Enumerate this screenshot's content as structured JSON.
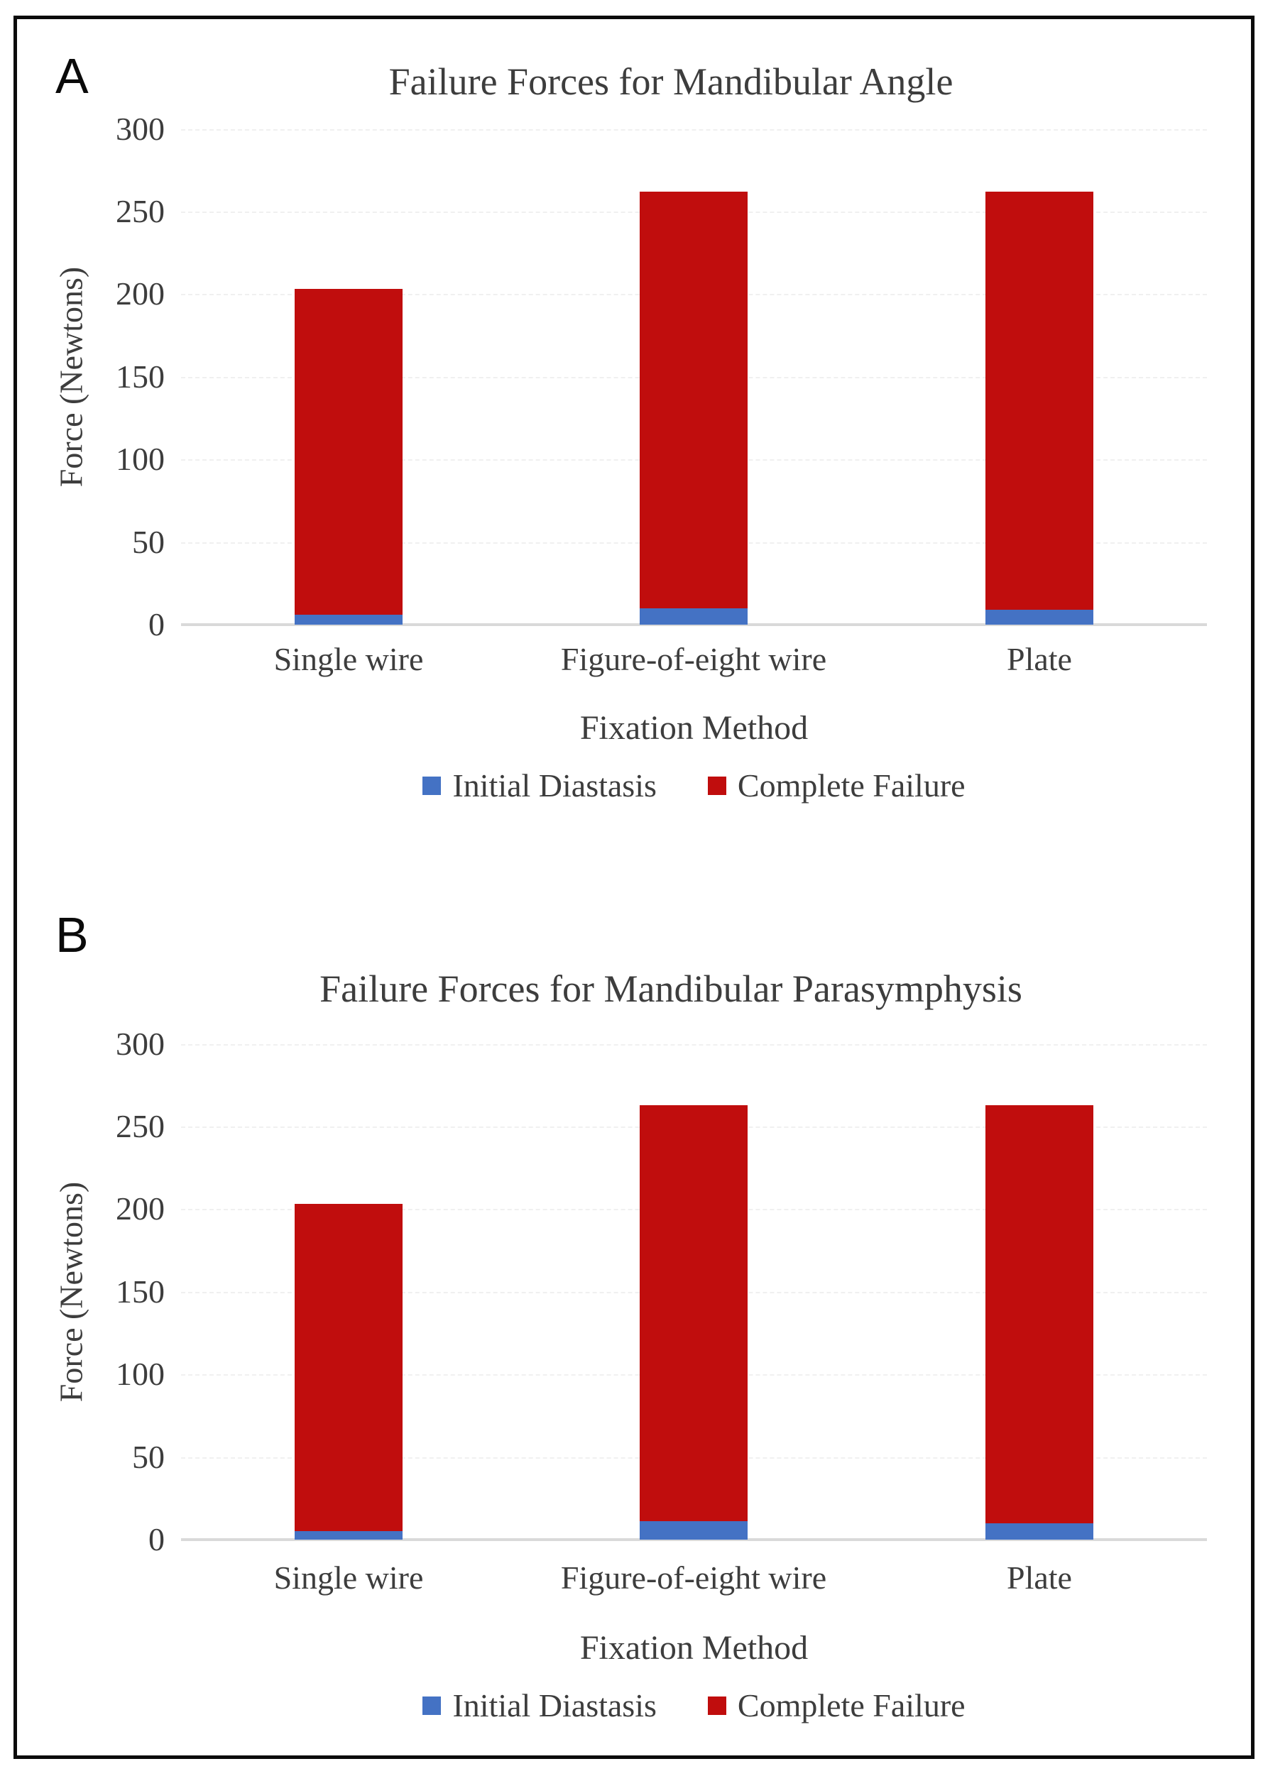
{
  "colors": {
    "initial_diastasis_blue": "#4472C4",
    "complete_failure_red": "#C00D0D",
    "baseline_gray": "#D9D9D9",
    "axis_text_gray": "#3D3D3D",
    "frame_black": "#0B0B0B"
  },
  "chart_data": [
    {
      "type": "bar",
      "panel_label": "A",
      "title": "Failure Forces for Mandibular Angle",
      "xlabel": "Fixation Method",
      "ylabel": "Force (Newtons)",
      "categories": [
        "Single wire",
        "Figure-of-eight wire",
        "Plate"
      ],
      "series": [
        {
          "name": "Initial Diastasis",
          "values": [
            6,
            10,
            9
          ]
        },
        {
          "name": "Complete Failure",
          "values": [
            203,
            262,
            262
          ]
        }
      ],
      "ylim": [
        0,
        300
      ],
      "yticks": [
        0,
        50,
        100,
        150,
        200,
        250,
        300
      ],
      "legend_position": "bottom",
      "grid": "very-faint-dashed-horizontal",
      "stacking": "overlay: Complete Failure value is total bar height; Initial Diastasis is the small blue segment at the base"
    },
    {
      "type": "bar",
      "panel_label": "B",
      "title": "Failure Forces for Mandibular Parasymphysis",
      "xlabel": "Fixation Method",
      "ylabel": "Force (Newtons)",
      "categories": [
        "Single wire",
        "Figure-of-eight wire",
        "Plate"
      ],
      "series": [
        {
          "name": "Initial Diastasis",
          "values": [
            5,
            11,
            10
          ]
        },
        {
          "name": "Complete Failure",
          "values": [
            203,
            263,
            263
          ]
        }
      ],
      "ylim": [
        0,
        300
      ],
      "yticks": [
        0,
        50,
        100,
        150,
        200,
        250,
        300
      ],
      "legend_position": "bottom",
      "grid": "very-faint-dashed-horizontal",
      "stacking": "overlay: Complete Failure value is total bar height; Initial Diastasis is the small blue segment at the base"
    }
  ]
}
